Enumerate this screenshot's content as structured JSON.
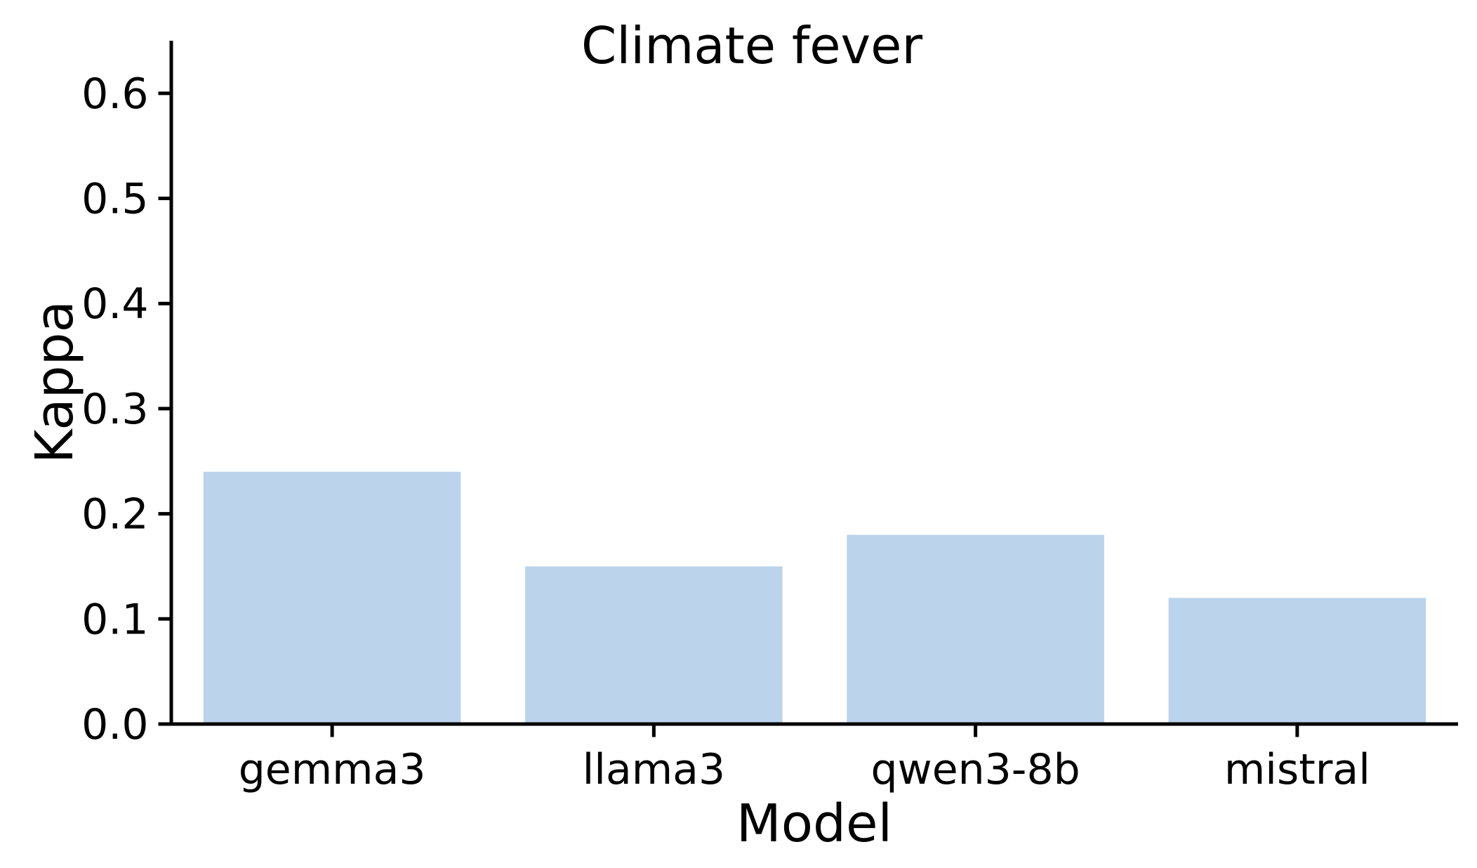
{
  "chart_data": {
    "type": "bar",
    "title": "Climate fever",
    "xlabel": "Model",
    "ylabel": "Kappa",
    "categories": [
      "gemma3",
      "llama3",
      "qwen3-8b",
      "mistral"
    ],
    "values": [
      0.24,
      0.15,
      0.18,
      0.12
    ],
    "ylim": [
      0,
      0.65
    ],
    "yticks": [
      0.0,
      0.1,
      0.2,
      0.3,
      0.4,
      0.5,
      0.6
    ],
    "ytick_labels": [
      "0.0",
      "0.1",
      "0.2",
      "0.3",
      "0.4",
      "0.5",
      "0.6"
    ],
    "bar_width_fraction": 0.8,
    "grid": false,
    "legend": null,
    "bar_color": "#bcd3ec",
    "axis_color": "#000000",
    "background_color": "#ffffff"
  }
}
